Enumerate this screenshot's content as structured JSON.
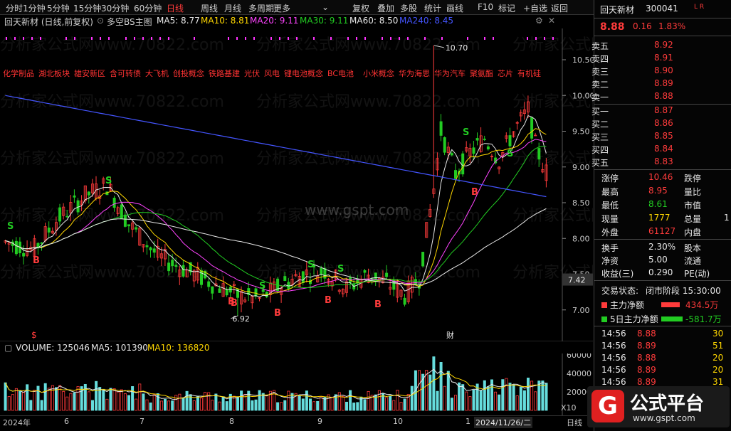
{
  "toolbar": {
    "items": [
      "分时",
      "1分钟",
      "5分钟",
      "15分钟",
      "30分钟",
      "60分钟",
      "日线",
      "周线",
      "月线",
      "多周期",
      "更多",
      "复权",
      "叠加",
      "多股",
      "统计",
      "画线",
      "F10",
      "标记",
      "+自选",
      "返回"
    ],
    "active": "日线",
    "more_suffix": "⌄"
  },
  "chart_header": {
    "stock_label": "回天新材 (日线,前复权)",
    "indicator": "多空BS主图",
    "ma5": "MA5: 8.77",
    "ma10": "MA10: 8.81",
    "ma20": "MA20: 9.11",
    "ma30": "MA30: 9.11",
    "ma60": "MA60: 8.50",
    "ma240": "MA240: 8.45",
    "colors": {
      "ma5": "#e8e8e8",
      "ma10": "#ffd700",
      "ma20": "#ff44ff",
      "ma30": "#22cc22",
      "ma60": "#e8e8e8",
      "ma240": "#4455ff"
    }
  },
  "concepts": [
    "化学制品",
    "湖北板块",
    "雄安新区",
    "含可转债",
    "大飞机",
    "创投概念",
    "铁路基建",
    "光伏",
    "风电",
    "锂电池概念",
    "BC电池",
    "小米概念",
    "华为海思",
    "华为汽车",
    "聚氨酯",
    "芯片",
    "有机硅"
  ],
  "price_axis": [
    "10.50",
    "10.00",
    "9.50",
    "9.00",
    "8.50",
    "8.00",
    "7.50",
    "7.00"
  ],
  "price_marker": "7.42",
  "annotations": {
    "high": "10.70",
    "low": "6.92"
  },
  "signals": [
    "S",
    "B",
    "S",
    "B",
    "S",
    "B",
    "S",
    "B",
    "B",
    "S",
    "B",
    "S",
    "B",
    "S"
  ],
  "markers": {
    "dollar": "$",
    "cai": "财"
  },
  "watermarks": [
    "分析家公式网www.70822.com",
    "www.gspt.com"
  ],
  "volume_header": {
    "volume": "VOLUME: 125046",
    "ma5": "MA5: 101390",
    "ma10": "MA10: 136820"
  },
  "volume_axis": [
    "60000",
    "40000",
    "20000"
  ],
  "volume_unit": "X10",
  "date_axis": [
    "2024年",
    "6",
    "7",
    "8",
    "9",
    "10",
    "1",
    "2024/11/26/二",
    "日线"
  ],
  "quote": {
    "name": "回天新材",
    "code": "300041",
    "flags": "L R",
    "price": "8.88",
    "change": "0.16",
    "pct": "1.83%",
    "asks": [
      {
        "label": "卖五",
        "price": "8.92"
      },
      {
        "label": "卖四",
        "price": "8.91"
      },
      {
        "label": "卖三",
        "price": "8.90"
      },
      {
        "label": "卖二",
        "price": "8.89"
      },
      {
        "label": "卖一",
        "price": "8.88"
      }
    ],
    "bids": [
      {
        "label": "买一",
        "price": "8.87"
      },
      {
        "label": "买二",
        "price": "8.86"
      },
      {
        "label": "买三",
        "price": "8.85"
      },
      {
        "label": "买四",
        "price": "8.84"
      },
      {
        "label": "买五",
        "price": "8.83"
      }
    ],
    "stats": [
      {
        "l1": "涨停",
        "v1": "10.46",
        "c1": "red",
        "l2": "跌停"
      },
      {
        "l1": "最高",
        "v1": "8.95",
        "c1": "red",
        "l2": "量比"
      },
      {
        "l1": "最低",
        "v1": "8.61",
        "c1": "green",
        "l2": "市值"
      },
      {
        "l1": "现量",
        "v1": "1777",
        "c1": "yellow",
        "l2": "总量",
        "v2": "1"
      },
      {
        "l1": "外盘",
        "v1": "61127",
        "c1": "red",
        "l2": "内盘"
      }
    ],
    "stats2": [
      {
        "l1": "换手",
        "v1": "2.30%",
        "l2": "股本"
      },
      {
        "l1": "净资",
        "v1": "5.00",
        "l2": "流通"
      },
      {
        "l1": "收益(三)",
        "v1": "0.290",
        "l2": "PE(动)"
      }
    ],
    "trade_status_label": "交易状态:",
    "trade_status": "闭市阶段 15:30:00",
    "main_flow_label": "主力净额",
    "main_flow": "434.5万",
    "main_flow5_label": "5日主力净额",
    "main_flow5": "-581.7万",
    "ticks": [
      {
        "time": "14:56",
        "price": "8.88",
        "vol": "30"
      },
      {
        "time": "14:56",
        "price": "8.89",
        "vol": "51"
      },
      {
        "time": "14:56",
        "price": "8.88",
        "vol": "20"
      },
      {
        "time": "14:56",
        "price": "8.89",
        "vol": "20"
      },
      {
        "time": "14:56",
        "price": "8.89",
        "vol": "31"
      }
    ]
  },
  "logo": {
    "text": "公式平台",
    "url": "www.gspt.com"
  }
}
